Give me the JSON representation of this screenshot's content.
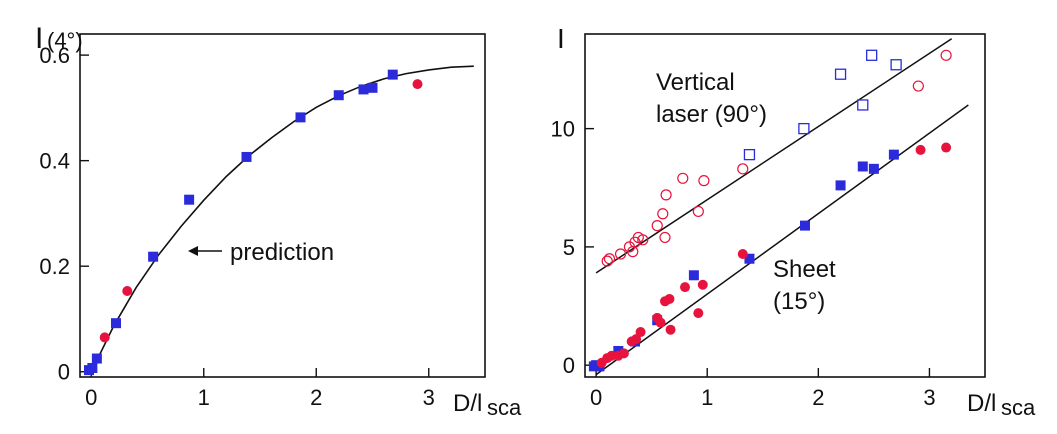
{
  "colors": {
    "blue": "#2b2bdc",
    "red": "#e8133c",
    "ink": "#111111"
  },
  "chart_data": [
    {
      "type": "scatter",
      "ylabel_main": "I",
      "ylabel_sub": "(4°)",
      "xlabel_main": "D/l",
      "xlabel_sub": "sca",
      "xlim": [
        -0.1,
        3.5
      ],
      "ylim": [
        -0.01,
        0.64
      ],
      "xticks": [
        0,
        1,
        2,
        3
      ],
      "xtick_labels": [
        "0",
        "1",
        "2",
        "3"
      ],
      "yticks": [
        0,
        0.2,
        0.4,
        0.6
      ],
      "ytick_labels": [
        "0",
        "0.2",
        "0.4",
        "0.6"
      ],
      "annotation": "prediction",
      "prediction_curve": {
        "x": [
          0,
          0.2,
          0.4,
          0.6,
          0.8,
          1.0,
          1.2,
          1.4,
          1.6,
          1.8,
          2.0,
          2.2,
          2.4,
          2.6,
          2.8,
          3.0,
          3.2,
          3.4
        ],
        "y": [
          0.0,
          0.087,
          0.16,
          0.222,
          0.276,
          0.325,
          0.37,
          0.409,
          0.443,
          0.474,
          0.501,
          0.523,
          0.541,
          0.555,
          0.565,
          0.572,
          0.577,
          0.579
        ]
      },
      "series": [
        {
          "marker": "square-filled",
          "color": "#2b2bdc",
          "points": [
            [
              -0.02,
              0.003
            ],
            [
              0.01,
              0.007
            ],
            [
              0.05,
              0.025
            ],
            [
              0.22,
              0.092
            ],
            [
              0.55,
              0.218
            ],
            [
              0.87,
              0.326
            ],
            [
              1.38,
              0.407
            ],
            [
              1.86,
              0.482
            ],
            [
              2.2,
              0.524
            ],
            [
              2.42,
              0.535
            ],
            [
              2.5,
              0.538
            ],
            [
              2.68,
              0.563
            ]
          ]
        },
        {
          "marker": "circle-filled",
          "color": "#e8133c",
          "points": [
            [
              0.12,
              0.065
            ],
            [
              0.32,
              0.153
            ],
            [
              2.9,
              0.545
            ]
          ]
        }
      ]
    },
    {
      "type": "scatter",
      "ylabel_main": "I",
      "xlabel_main": "D/l",
      "xlabel_sub": "sca",
      "xlim": [
        -0.1,
        3.5
      ],
      "ylim": [
        0,
        14.5
      ],
      "xticks": [
        0,
        1,
        2,
        3
      ],
      "xtick_labels": [
        "0",
        "1",
        "2",
        "3"
      ],
      "yticks": [
        0.5,
        5.5,
        10.5
      ],
      "ytick_labels": [
        "0",
        "5",
        "10"
      ],
      "annotations": {
        "vertical_line1": "Vertical",
        "vertical_line2": "laser (90°)",
        "sheet_line1": "Sheet",
        "sheet_line2": "(15°)"
      },
      "fit_lines": [
        {
          "name": "vertical",
          "x": [
            0,
            3.2
          ],
          "y": [
            4.4,
            14.3
          ]
        },
        {
          "name": "sheet",
          "x": [
            0,
            3.35
          ],
          "y": [
            0.1,
            11.5
          ]
        }
      ],
      "series": [
        {
          "marker": "square-open",
          "color": "#2b2bdc",
          "points": [
            [
              1.38,
              9.4
            ],
            [
              1.87,
              10.5
            ],
            [
              2.2,
              12.8
            ],
            [
              2.4,
              11.5
            ],
            [
              2.48,
              13.6
            ],
            [
              2.7,
              13.2
            ]
          ]
        },
        {
          "marker": "circle-open",
          "color": "#e8133c",
          "points": [
            [
              0.1,
              4.9
            ],
            [
              0.12,
              5.0
            ],
            [
              0.22,
              5.2
            ],
            [
              0.3,
              5.5
            ],
            [
              0.33,
              5.3
            ],
            [
              0.35,
              5.7
            ],
            [
              0.38,
              5.9
            ],
            [
              0.42,
              5.8
            ],
            [
              0.55,
              6.4
            ],
            [
              0.6,
              6.9
            ],
            [
              0.62,
              5.9
            ],
            [
              0.63,
              7.7
            ],
            [
              0.78,
              8.4
            ],
            [
              0.92,
              7.0
            ],
            [
              0.97,
              8.3
            ],
            [
              1.32,
              8.8
            ],
            [
              2.9,
              12.3
            ],
            [
              3.15,
              13.6
            ]
          ]
        },
        {
          "marker": "square-filled",
          "color": "#2b2bdc",
          "points": [
            [
              -0.02,
              0.45
            ],
            [
              0.0,
              0.5
            ],
            [
              0.03,
              0.45
            ],
            [
              0.2,
              1.1
            ],
            [
              0.35,
              1.5
            ],
            [
              0.55,
              2.4
            ],
            [
              0.88,
              4.3
            ],
            [
              1.38,
              5.0
            ],
            [
              1.88,
              6.4
            ],
            [
              2.2,
              8.1
            ],
            [
              2.4,
              8.9
            ],
            [
              2.5,
              8.8
            ],
            [
              2.68,
              9.4
            ]
          ]
        },
        {
          "marker": "circle-filled",
          "color": "#e8133c",
          "points": [
            [
              0.05,
              0.6
            ],
            [
              0.1,
              0.8
            ],
            [
              0.14,
              0.9
            ],
            [
              0.2,
              0.9
            ],
            [
              0.25,
              1.0
            ],
            [
              0.32,
              1.5
            ],
            [
              0.36,
              1.6
            ],
            [
              0.4,
              1.9
            ],
            [
              0.55,
              2.5
            ],
            [
              0.58,
              2.3
            ],
            [
              0.62,
              3.2
            ],
            [
              0.66,
              3.3
            ],
            [
              0.67,
              2.0
            ],
            [
              0.8,
              3.8
            ],
            [
              0.92,
              2.7
            ],
            [
              0.96,
              3.9
            ],
            [
              1.32,
              5.2
            ],
            [
              2.92,
              9.6
            ],
            [
              3.15,
              9.7
            ]
          ]
        }
      ]
    }
  ]
}
